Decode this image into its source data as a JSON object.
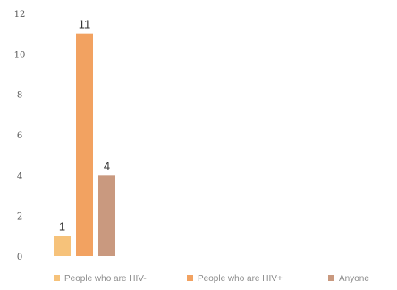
{
  "chart_data": {
    "type": "bar",
    "title": "",
    "xlabel": "",
    "ylabel": "",
    "ylim": [
      0,
      12
    ],
    "yticks": [
      0,
      2,
      4,
      6,
      8,
      10,
      12
    ],
    "grid": false,
    "legend_position": "bottom",
    "series": [
      {
        "name": "People who are HIV-",
        "values": [
          1
        ],
        "color": "#f6c27a"
      },
      {
        "name": "People who are HIV+",
        "values": [
          11
        ],
        "color": "#f2a261"
      },
      {
        "name": "Anyone",
        "values": [
          4
        ],
        "color": "#c9997f"
      }
    ],
    "data_labels": [
      "1",
      "11",
      "4"
    ]
  }
}
